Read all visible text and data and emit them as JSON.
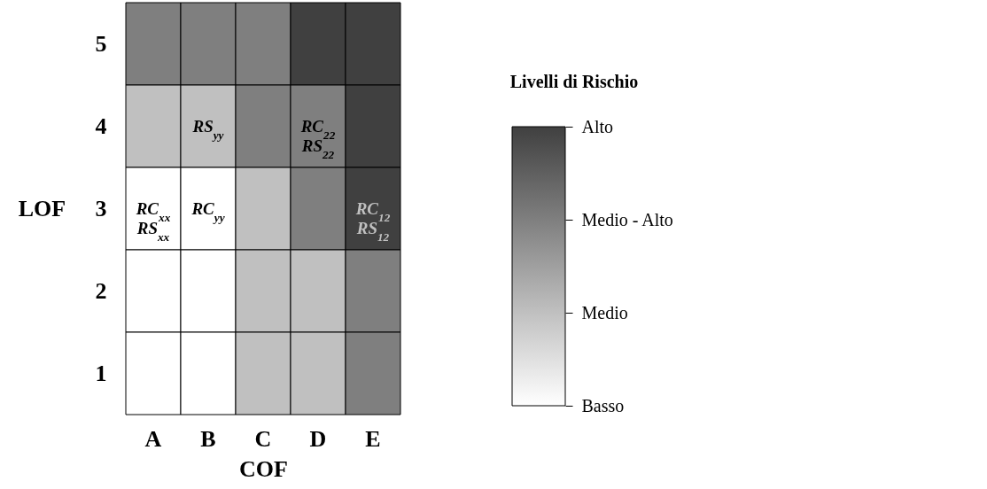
{
  "chart_data": {
    "type": "heatmap",
    "xlabel": "COF",
    "ylabel": "LOF",
    "clabel": "Livelli di Rischio",
    "categories": [
      "A",
      "B",
      "C",
      "D",
      "E"
    ],
    "y_categories": [
      "5",
      "4",
      "3",
      "2",
      "1"
    ],
    "cells": [
      [
        3,
        3,
        3,
        4,
        4
      ],
      [
        2,
        2,
        3,
        3,
        4
      ],
      [
        1,
        1,
        2,
        3,
        4
      ],
      [
        1,
        1,
        2,
        2,
        3
      ],
      [
        1,
        1,
        2,
        2,
        3
      ]
    ],
    "cell_labels": [
      [
        null,
        null,
        null,
        null,
        null
      ],
      [
        null,
        "RS$_{yy}$",
        null,
        "RC$_{22}$\nRS$_{22}$",
        null
      ],
      [
        "RC$_{xx}$\nRS$_{xx}$",
        "RC$_{yy}$",
        null,
        null,
        "RC$_{12}$\nRS$_{12}$"
      ],
      [
        null,
        null,
        null,
        null,
        null
      ],
      [
        null,
        null,
        null,
        null,
        null
      ]
    ],
    "clim": [
      1,
      4
    ],
    "cticks": [
      {
        "value": 1,
        "label": "Basso"
      },
      {
        "value": 2,
        "label": "Medio"
      },
      {
        "value": 3,
        "label": "Medio - Alto"
      },
      {
        "value": 4,
        "label": "Alto"
      }
    ],
    "colors": [
      "#ffffff",
      "#c0c0c0",
      "#7f7f7f",
      "#404040"
    ]
  }
}
